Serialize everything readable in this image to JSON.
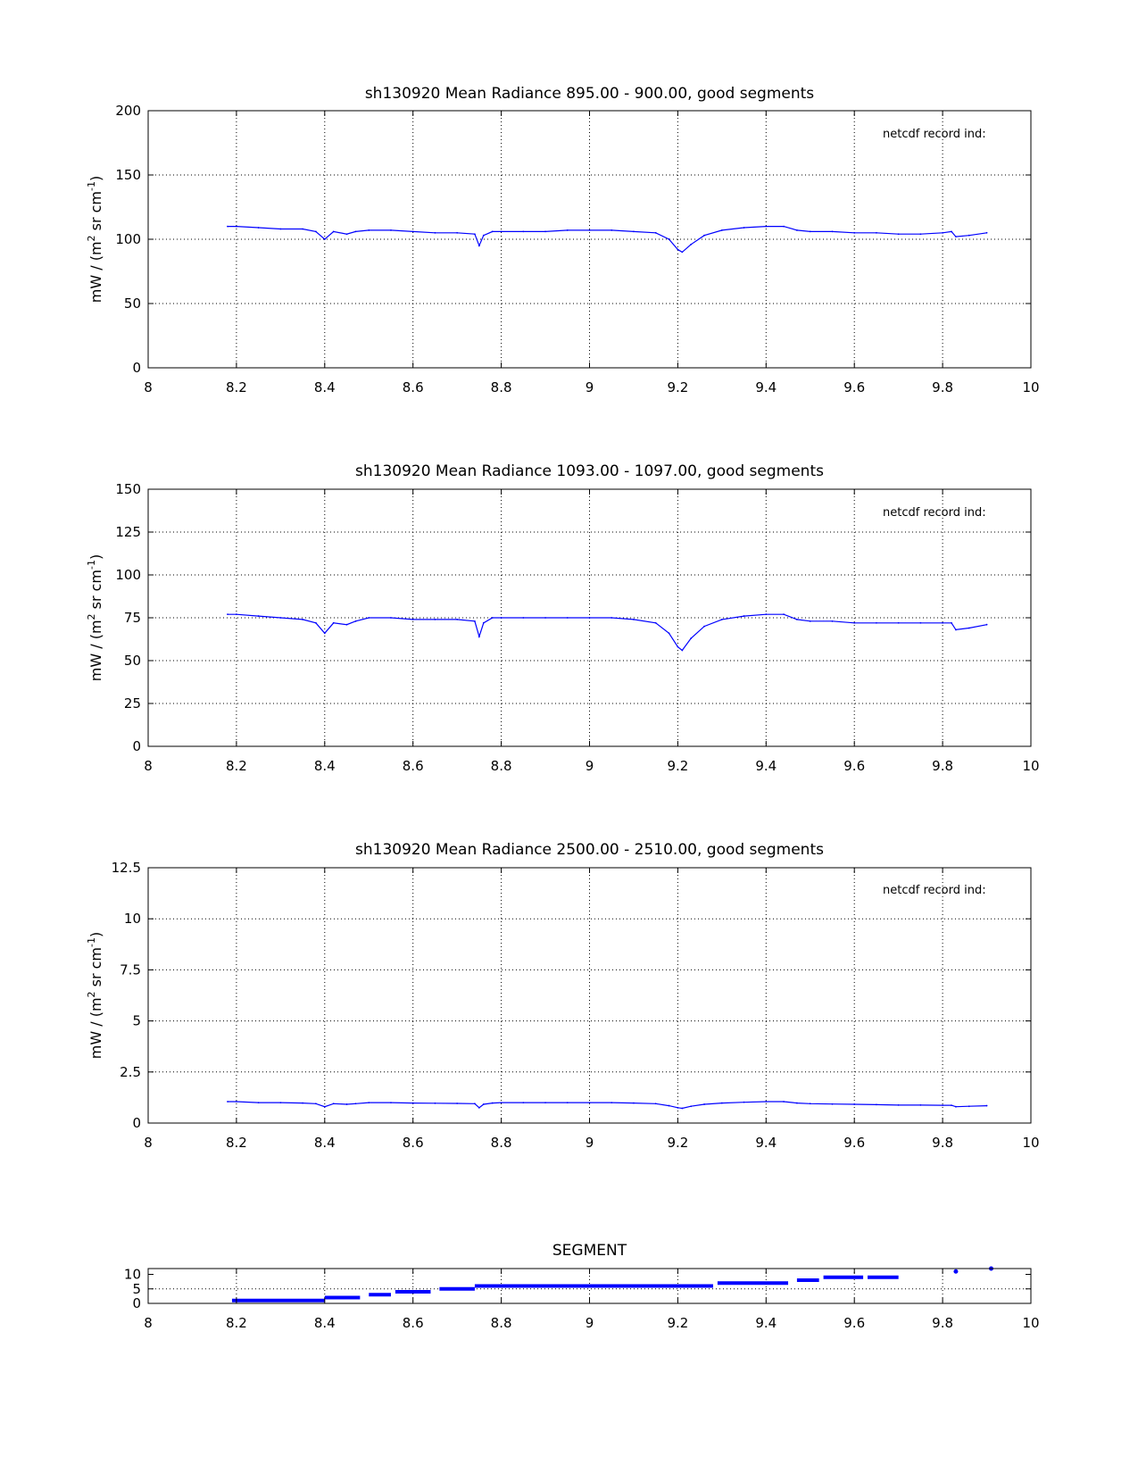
{
  "colors": {
    "series": "#0000ff",
    "axes": "#000000",
    "grid": "#000000",
    "background": "#ffffff"
  },
  "chart_data": [
    {
      "type": "line",
      "title": "sh130920 Mean Radiance 895.00 - 900.00, good segments",
      "xlabel": "",
      "ylabel_main": "mW / (m",
      "ylabel_sup1": "2",
      "ylabel_mid": " sr cm",
      "ylabel_sup2": "-1",
      "ylabel_end": ")",
      "annotation": "netcdf record ind:",
      "grid": true,
      "xlim": [
        8,
        10
      ],
      "ylim": [
        0,
        200
      ],
      "xticks": [
        "8",
        "8.2",
        "8.4",
        "8.6",
        "8.8",
        "9",
        "9.2",
        "9.4",
        "9.6",
        "9.8",
        "10"
      ],
      "yticks": [
        "0",
        "50",
        "100",
        "150",
        "200"
      ],
      "series": [
        {
          "x": [
            8.18,
            8.2,
            8.25,
            8.3,
            8.35,
            8.38,
            8.4,
            8.42,
            8.45,
            8.47,
            8.5,
            8.55,
            8.6,
            8.65,
            8.7,
            8.74,
            8.75,
            8.76,
            8.78,
            8.8,
            8.85,
            8.9,
            8.95,
            9.0,
            9.05,
            9.1,
            9.15,
            9.18,
            9.2,
            9.21,
            9.23,
            9.26,
            9.3,
            9.35,
            9.4,
            9.44,
            9.47,
            9.5,
            9.55,
            9.6,
            9.65,
            9.7,
            9.75,
            9.8,
            9.82,
            9.83,
            9.86,
            9.9
          ],
          "y": [
            110,
            110,
            109,
            108,
            108,
            106,
            100,
            106,
            104,
            106,
            107,
            107,
            106,
            105,
            105,
            104,
            95,
            103,
            106,
            106,
            106,
            106,
            107,
            107,
            107,
            106,
            105,
            100,
            92,
            90,
            96,
            103,
            107,
            109,
            110,
            110,
            107,
            106,
            106,
            105,
            105,
            104,
            104,
            105,
            106,
            102,
            103,
            105
          ]
        }
      ]
    },
    {
      "type": "line",
      "title": "sh130920 Mean Radiance 1093.00 - 1097.00, good segments",
      "xlabel": "",
      "ylabel_main": "mW / (m",
      "ylabel_sup1": "2",
      "ylabel_mid": " sr cm",
      "ylabel_sup2": "-1",
      "ylabel_end": ")",
      "annotation": "netcdf record ind:",
      "grid": true,
      "xlim": [
        8,
        10
      ],
      "ylim": [
        0,
        150
      ],
      "xticks": [
        "8",
        "8.2",
        "8.4",
        "8.6",
        "8.8",
        "9",
        "9.2",
        "9.4",
        "9.6",
        "9.8",
        "10"
      ],
      "yticks": [
        "0",
        "25",
        "50",
        "75",
        "100",
        "125",
        "150"
      ],
      "series": [
        {
          "x": [
            8.18,
            8.2,
            8.25,
            8.3,
            8.35,
            8.38,
            8.4,
            8.42,
            8.45,
            8.47,
            8.5,
            8.55,
            8.6,
            8.65,
            8.7,
            8.74,
            8.75,
            8.76,
            8.78,
            8.8,
            8.85,
            8.9,
            8.95,
            9.0,
            9.05,
            9.1,
            9.15,
            9.18,
            9.2,
            9.21,
            9.23,
            9.26,
            9.3,
            9.35,
            9.4,
            9.44,
            9.47,
            9.5,
            9.55,
            9.6,
            9.65,
            9.7,
            9.75,
            9.8,
            9.82,
            9.83,
            9.86,
            9.9
          ],
          "y": [
            77,
            77,
            76,
            75,
            74,
            72,
            66,
            72,
            71,
            73,
            75,
            75,
            74,
            74,
            74,
            73,
            64,
            72,
            75,
            75,
            75,
            75,
            75,
            75,
            75,
            74,
            72,
            66,
            58,
            56,
            63,
            70,
            74,
            76,
            77,
            77,
            74,
            73,
            73,
            72,
            72,
            72,
            72,
            72,
            72,
            68,
            69,
            71
          ]
        }
      ]
    },
    {
      "type": "line",
      "title": "sh130920 Mean Radiance 2500.00 - 2510.00, good segments",
      "xlabel": "",
      "ylabel_main": "mW / (m",
      "ylabel_sup1": "2",
      "ylabel_mid": " sr cm",
      "ylabel_sup2": "-1",
      "ylabel_end": ")",
      "annotation": "netcdf record ind:",
      "grid": true,
      "xlim": [
        8,
        10
      ],
      "ylim": [
        0,
        12.5
      ],
      "xticks": [
        "8",
        "8.2",
        "8.4",
        "8.6",
        "8.8",
        "9",
        "9.2",
        "9.4",
        "9.6",
        "9.8",
        "10"
      ],
      "yticks": [
        "0",
        "2.5",
        "5",
        "7.5",
        "10",
        "12.5"
      ],
      "series": [
        {
          "x": [
            8.18,
            8.2,
            8.25,
            8.3,
            8.35,
            8.38,
            8.4,
            8.42,
            8.45,
            8.47,
            8.5,
            8.55,
            8.6,
            8.65,
            8.7,
            8.74,
            8.75,
            8.76,
            8.78,
            8.8,
            8.85,
            8.9,
            8.95,
            9.0,
            9.05,
            9.1,
            9.15,
            9.18,
            9.2,
            9.21,
            9.23,
            9.26,
            9.3,
            9.35,
            9.4,
            9.44,
            9.47,
            9.5,
            9.55,
            9.6,
            9.65,
            9.7,
            9.75,
            9.8,
            9.82,
            9.83,
            9.86,
            9.9
          ],
          "y": [
            1.05,
            1.05,
            1.0,
            1.0,
            0.98,
            0.95,
            0.8,
            0.95,
            0.92,
            0.95,
            1.0,
            1.0,
            0.98,
            0.97,
            0.96,
            0.95,
            0.75,
            0.92,
            0.98,
            1.0,
            1.0,
            1.0,
            1.0,
            1.0,
            1.0,
            0.98,
            0.95,
            0.85,
            0.75,
            0.72,
            0.82,
            0.92,
            0.98,
            1.02,
            1.05,
            1.05,
            0.98,
            0.95,
            0.93,
            0.92,
            0.9,
            0.88,
            0.88,
            0.87,
            0.87,
            0.8,
            0.82,
            0.85
          ]
        }
      ]
    },
    {
      "type": "scatter",
      "title": "SEGMENT",
      "xlabel": "",
      "grid": true,
      "xlim": [
        8,
        10
      ],
      "ylim": [
        0,
        12
      ],
      "xticks": [
        "8",
        "8.2",
        "8.4",
        "8.6",
        "8.8",
        "9",
        "9.2",
        "9.4",
        "9.6",
        "9.8",
        "10"
      ],
      "yticks": [
        "0",
        "5",
        "10"
      ],
      "segments": [
        {
          "x0": 8.19,
          "x1": 8.4,
          "y": 1
        },
        {
          "x0": 8.4,
          "x1": 8.48,
          "y": 2
        },
        {
          "x0": 8.5,
          "x1": 8.55,
          "y": 3
        },
        {
          "x0": 8.56,
          "x1": 8.64,
          "y": 4
        },
        {
          "x0": 8.66,
          "x1": 8.74,
          "y": 5
        },
        {
          "x0": 8.74,
          "x1": 9.28,
          "y": 6
        },
        {
          "x0": 9.29,
          "x1": 9.45,
          "y": 7
        },
        {
          "x0": 9.47,
          "x1": 9.52,
          "y": 8
        },
        {
          "x0": 9.53,
          "x1": 9.62,
          "y": 9
        },
        {
          "x0": 9.63,
          "x1": 9.7,
          "y": 9
        }
      ],
      "points": [
        {
          "x": 9.83,
          "y": 11
        },
        {
          "x": 9.91,
          "y": 12
        }
      ]
    }
  ]
}
